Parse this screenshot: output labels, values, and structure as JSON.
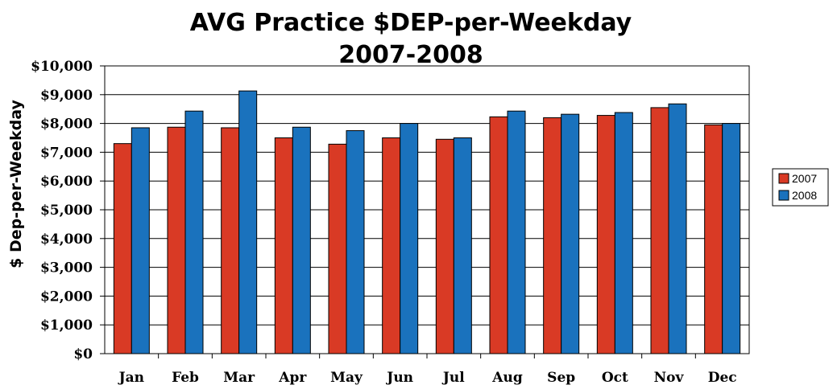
{
  "chart_data": {
    "type": "bar",
    "title": "AVG Practice $DEP-per-Weekday",
    "subtitle": "2007-2008",
    "xlabel": "",
    "ylabel": "$ Dep-per-Weekday",
    "ylim": [
      0,
      10000
    ],
    "yticks": [
      "$0",
      "$1,000",
      "$2,000",
      "$3,000",
      "$4,000",
      "$5,000",
      "$6,000",
      "$7,000",
      "$8,000",
      "$9,000",
      "$10,000"
    ],
    "grid": true,
    "legend_position": "right",
    "categories": [
      "Jan",
      "Feb",
      "Mar",
      "Apr",
      "May",
      "Jun",
      "Jul",
      "Aug",
      "Sep",
      "Oct",
      "Nov",
      "Dec"
    ],
    "series": [
      {
        "name": "2007",
        "color": "#d93a25",
        "values": [
          7300,
          7870,
          7850,
          7500,
          7280,
          7500,
          7450,
          8230,
          8200,
          8280,
          8550,
          7950
        ]
      },
      {
        "name": "2008",
        "color": "#1a72bd",
        "values": [
          7850,
          8430,
          9130,
          7870,
          7750,
          8000,
          7500,
          8430,
          8320,
          8380,
          8680,
          8000
        ]
      }
    ]
  }
}
